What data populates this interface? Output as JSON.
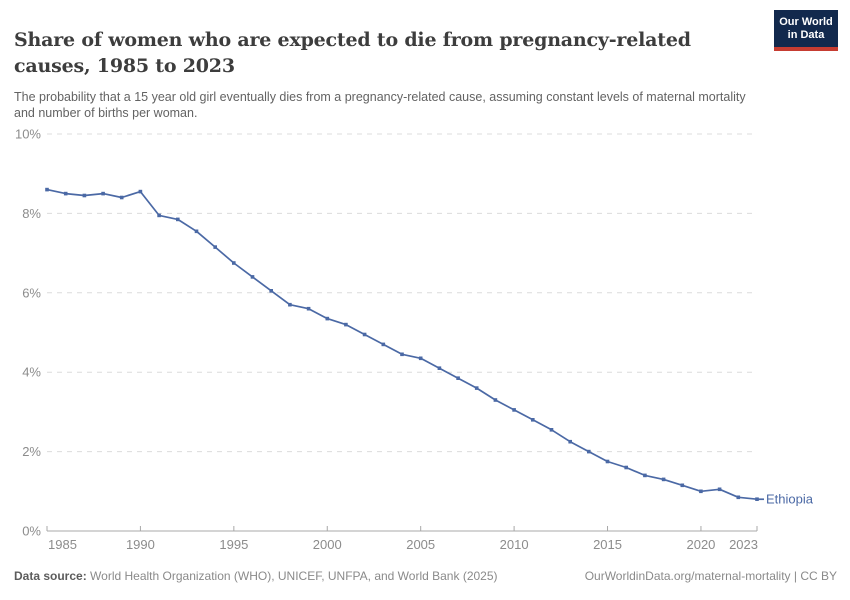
{
  "header": {
    "title": "Share of women who are expected to die from pregnancy-related causes, 1985 to 2023",
    "subtitle": "The probability that a 15 year old girl eventually dies from a pregnancy-related cause, assuming constant levels of maternal mortality and number of births per woman.",
    "logo": {
      "line1": "Our World",
      "line2": "in Data"
    }
  },
  "chart_data": {
    "type": "line",
    "title": "Share of women who are expected to die from pregnancy-related causes, 1985 to 2023",
    "subtitle": "The probability that a 15 year old girl eventually dies from a pregnancy-related cause, assuming constant levels of maternal mortality and number of births per woman.",
    "xlabel": "",
    "ylabel": "",
    "xlim": [
      1985,
      2023
    ],
    "ylim": [
      0,
      10
    ],
    "xticks": [
      1985,
      1990,
      1995,
      2000,
      2005,
      2010,
      2015,
      2020,
      2023
    ],
    "yticks": [
      0,
      2,
      4,
      6,
      8,
      10
    ],
    "ytick_suffix": "%",
    "grid": "horizontal-dashed",
    "legend_position": "end-of-line",
    "series": [
      {
        "name": "Ethiopia",
        "color": "#4b69a5",
        "x": [
          1985,
          1986,
          1987,
          1988,
          1989,
          1990,
          1991,
          1992,
          1993,
          1994,
          1995,
          1996,
          1997,
          1998,
          1999,
          2000,
          2001,
          2002,
          2003,
          2004,
          2005,
          2006,
          2007,
          2008,
          2009,
          2010,
          2011,
          2012,
          2013,
          2014,
          2015,
          2016,
          2017,
          2018,
          2019,
          2020,
          2021,
          2022,
          2023
        ],
        "values": [
          8.6,
          8.5,
          8.45,
          8.5,
          8.4,
          8.55,
          7.95,
          7.85,
          7.55,
          7.15,
          6.75,
          6.4,
          6.05,
          5.7,
          5.6,
          5.35,
          5.2,
          4.95,
          4.7,
          4.45,
          4.35,
          4.1,
          3.85,
          3.6,
          3.3,
          3.05,
          2.8,
          2.55,
          2.25,
          2.0,
          1.75,
          1.6,
          1.4,
          1.3,
          1.15,
          1.0,
          1.05,
          0.85,
          0.8
        ]
      }
    ]
  },
  "footer": {
    "datasource_label": "Data source:",
    "datasource_text": " World Health Organization (WHO), UNICEF, UNFPA, and World Bank (2025)",
    "link": "OurWorldinData.org/maternal-mortality | CC BY"
  },
  "colors": {
    "line": "#4b69a5",
    "grid": "#dcdcdc",
    "axis": "#a8a8a8",
    "tick_label": "#8c8c8c",
    "title_text": "#3d3d3d",
    "subtitle_text": "#636363",
    "logo_bg": "#12294d",
    "logo_stripe": "#c63c31"
  }
}
